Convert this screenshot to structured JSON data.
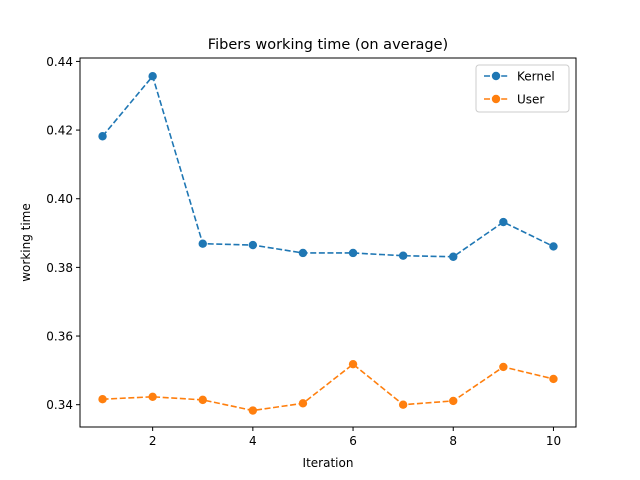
{
  "chart_data": {
    "type": "line",
    "title": "Fibers working time (on average)",
    "xlabel": "Iteration",
    "ylabel": "working time",
    "x": [
      1,
      2,
      3,
      4,
      5,
      6,
      7,
      8,
      9,
      10
    ],
    "xlim": [
      0.55,
      10.45
    ],
    "ylim": [
      0.3335,
      0.441
    ],
    "xticks": [
      2,
      4,
      6,
      8,
      10
    ],
    "yticks": [
      0.34,
      0.36,
      0.38,
      0.4,
      0.42,
      0.44
    ],
    "ytick_labels": [
      "0.34",
      "0.36",
      "0.38",
      "0.40",
      "0.42",
      "0.44"
    ],
    "legend_position": "top-right",
    "grid": false,
    "series": [
      {
        "name": "Kernel",
        "color": "#1f77b4",
        "values": [
          0.4182,
          0.4357,
          0.3869,
          0.3865,
          0.3842,
          0.3842,
          0.3834,
          0.3831,
          0.3932,
          0.3861
        ]
      },
      {
        "name": "User",
        "color": "#ff7f0e",
        "values": [
          0.3416,
          0.3423,
          0.3414,
          0.3383,
          0.3404,
          0.3518,
          0.34,
          0.3411,
          0.351,
          0.3475
        ]
      }
    ]
  }
}
